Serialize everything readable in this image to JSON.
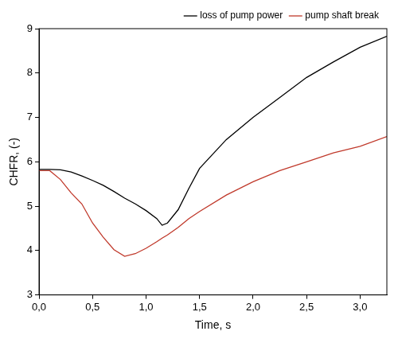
{
  "chart_data": {
    "type": "line",
    "x_label": "Time, s",
    "y_label": "CHFR, (-)",
    "x": [
      0,
      0.1,
      0.2,
      0.3,
      0.4,
      0.5,
      0.6,
      0.7,
      0.8,
      0.9,
      1.0,
      1.1,
      1.15,
      1.2,
      1.3,
      1.4,
      1.5,
      1.75,
      2.0,
      2.25,
      2.5,
      2.75,
      3.0,
      3.25
    ],
    "series": [
      {
        "name": "loss of pump power",
        "color": "#000000",
        "values": [
          5.83,
          5.83,
          5.82,
          5.77,
          5.68,
          5.58,
          5.47,
          5.33,
          5.18,
          5.05,
          4.9,
          4.72,
          4.57,
          4.62,
          4.92,
          5.4,
          5.85,
          6.5,
          7.0,
          7.45,
          7.9,
          8.25,
          8.58,
          8.83
        ]
      },
      {
        "name": "pump shaft break",
        "color": "#c0392b",
        "values": [
          5.8,
          5.8,
          5.6,
          5.3,
          5.05,
          4.62,
          4.3,
          4.02,
          3.87,
          3.93,
          4.05,
          4.2,
          4.28,
          4.35,
          4.52,
          4.72,
          4.88,
          5.25,
          5.55,
          5.8,
          6.0,
          6.2,
          6.35,
          6.57
        ]
      }
    ],
    "xlim": [
      0,
      3.25
    ],
    "xticks": [
      {
        "value": 0,
        "label": "0,0"
      },
      {
        "value": 0.5,
        "label": "0,5"
      },
      {
        "value": 1.0,
        "label": "1,0"
      },
      {
        "value": 1.5,
        "label": "1,5"
      },
      {
        "value": 2.0,
        "label": "2,0"
      },
      {
        "value": 2.5,
        "label": "2,5"
      },
      {
        "value": 3.0,
        "label": "3,0"
      }
    ],
    "ylim": [
      3,
      9
    ],
    "yticks": [
      3,
      4,
      5,
      6,
      7,
      8,
      9
    ],
    "grid": false,
    "legend": "upper right"
  }
}
